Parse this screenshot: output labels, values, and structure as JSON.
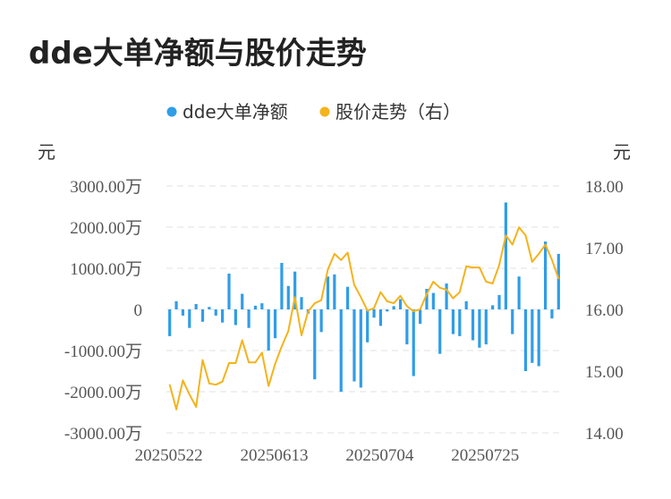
{
  "title": "dde大单净额与股价走势",
  "colors": {
    "bar": "#2f9de8",
    "line": "#f4b31c",
    "grid": "#e6e6e6"
  },
  "chart_data": {
    "type": "bar+line",
    "legend": [
      "dde大单净额",
      "股价走势（右）"
    ],
    "legend_position": "top",
    "y_left_unit": "元",
    "y_right_unit": "元",
    "y_left_ticks": [
      "3000.00万",
      "2000.00万",
      "1000.00万",
      "0",
      "-1000.00万",
      "-2000.00万",
      "-3000.00万"
    ],
    "y_right_ticks": [
      "18.00",
      "17.00",
      "16.00",
      "15.00",
      "14.00"
    ],
    "y_left_range": [
      -3000,
      3000
    ],
    "y_right_range": [
      14,
      18
    ],
    "x_tick_labels": [
      "20250522",
      "20250613",
      "20250704",
      "20250725"
    ],
    "x_tick_indices": [
      0,
      16,
      32,
      48
    ],
    "grid": true,
    "series": [
      {
        "name": "dde大单净额",
        "type": "bar",
        "axis": "left",
        "unit": "万元",
        "values": [
          -650,
          200,
          -150,
          -450,
          130,
          -300,
          60,
          -150,
          -320,
          870,
          -380,
          380,
          -450,
          90,
          150,
          -1000,
          -700,
          1130,
          570,
          920,
          300,
          -100,
          -1700,
          -550,
          800,
          850,
          -2000,
          550,
          -1750,
          -1900,
          -800,
          -200,
          -400,
          -50,
          80,
          250,
          -850,
          -1620,
          -350,
          500,
          400,
          -1080,
          630,
          -600,
          -650,
          200,
          -750,
          -930,
          -850,
          100,
          350,
          2600,
          -600,
          800,
          -1500,
          -1300,
          -1380,
          1650,
          -220,
          1350
        ]
      },
      {
        "name": "股价走势（右）",
        "type": "line",
        "axis": "right",
        "values": [
          14.78,
          14.38,
          14.85,
          14.62,
          14.42,
          15.18,
          14.8,
          14.78,
          14.83,
          15.13,
          15.13,
          15.5,
          15.14,
          15.14,
          15.3,
          14.76,
          15.12,
          15.4,
          15.65,
          16.2,
          15.58,
          15.97,
          16.1,
          16.15,
          16.65,
          16.9,
          16.8,
          16.92,
          16.4,
          16.2,
          15.98,
          16.02,
          16.28,
          16.13,
          16.1,
          16.22,
          16.05,
          15.97,
          16.0,
          16.25,
          16.45,
          16.35,
          16.32,
          16.18,
          16.28,
          16.7,
          16.68,
          16.68,
          16.45,
          16.42,
          16.72,
          17.2,
          17.05,
          17.33,
          17.2,
          16.77,
          16.9,
          17.05,
          16.8,
          16.5
        ]
      }
    ]
  }
}
